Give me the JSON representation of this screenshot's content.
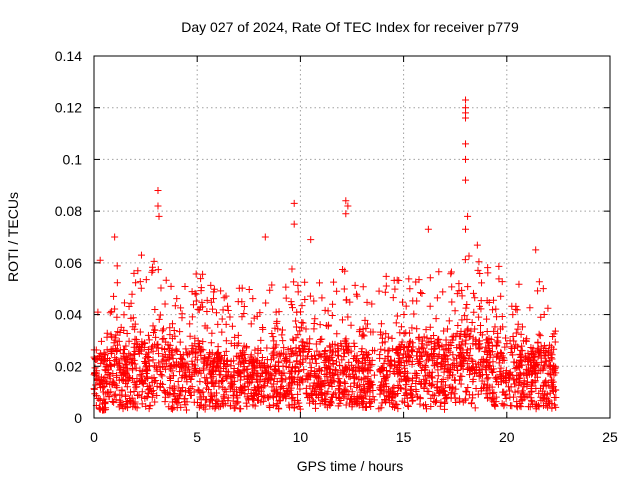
{
  "chart_data": {
    "type": "scatter",
    "title": "Day 027 of 2024, Rate Of TEC Index for receiver p779",
    "xlabel": "GPS time / hours",
    "ylabel": "ROTI / TECUs",
    "xlim": [
      0,
      25
    ],
    "ylim": [
      0,
      0.14
    ],
    "x_ticks": [
      0,
      5,
      10,
      15,
      20,
      25
    ],
    "x_tick_labels": [
      "0",
      "5",
      "10",
      "15",
      "20",
      "25"
    ],
    "y_ticks": [
      0,
      0.02,
      0.04,
      0.06,
      0.08,
      0.1,
      0.12,
      0.14
    ],
    "y_tick_labels": [
      "0",
      "0.02",
      "0.04",
      "0.06",
      "0.08",
      "0.1",
      "0.12",
      "0.14"
    ],
    "grid": true,
    "marker": "plus",
    "marker_color": "#ff0000",
    "data_extent_hours": [
      0,
      22.4
    ],
    "data_gap_hours": [
      13.6,
      13.8
    ],
    "notable_points": [
      {
        "x": 3.1,
        "y": 0.088
      },
      {
        "x": 3.1,
        "y": 0.082
      },
      {
        "x": 3.15,
        "y": 0.078
      },
      {
        "x": 9.7,
        "y": 0.083
      },
      {
        "x": 9.7,
        "y": 0.075
      },
      {
        "x": 12.2,
        "y": 0.084
      },
      {
        "x": 12.3,
        "y": 0.082
      },
      {
        "x": 12.2,
        "y": 0.079
      },
      {
        "x": 18.0,
        "y": 0.123
      },
      {
        "x": 18.0,
        "y": 0.12
      },
      {
        "x": 18.0,
        "y": 0.118
      },
      {
        "x": 18.0,
        "y": 0.116
      },
      {
        "x": 18.0,
        "y": 0.106
      },
      {
        "x": 18.0,
        "y": 0.1
      },
      {
        "x": 18.0,
        "y": 0.092
      },
      {
        "x": 18.1,
        "y": 0.078
      },
      {
        "x": 18.0,
        "y": 0.073
      },
      {
        "x": 1.0,
        "y": 0.07
      },
      {
        "x": 8.3,
        "y": 0.07
      },
      {
        "x": 10.5,
        "y": 0.069
      },
      {
        "x": 16.2,
        "y": 0.073
      },
      {
        "x": 21.4,
        "y": 0.065
      },
      {
        "x": 0.3,
        "y": 0.061
      },
      {
        "x": 2.3,
        "y": 0.063
      }
    ],
    "envelope": {
      "x": [
        0,
        0.5,
        1,
        1.5,
        2,
        2.5,
        3,
        3.5,
        4,
        4.5,
        5,
        5.5,
        6,
        6.5,
        7,
        7.5,
        8,
        8.5,
        9,
        9.5,
        10,
        10.5,
        11,
        11.5,
        12,
        12.5,
        13,
        13.5,
        14,
        14.5,
        15,
        15.5,
        16,
        16.5,
        17,
        17.5,
        18,
        18.5,
        19,
        19.5,
        20,
        20.5,
        21,
        21.5,
        22,
        22.4
      ],
      "upper": [
        0.035,
        0.055,
        0.065,
        0.045,
        0.058,
        0.06,
        0.062,
        0.058,
        0.05,
        0.052,
        0.058,
        0.055,
        0.056,
        0.05,
        0.052,
        0.05,
        0.045,
        0.052,
        0.05,
        0.058,
        0.062,
        0.056,
        0.052,
        0.055,
        0.06,
        0.05,
        0.055,
        0.05,
        0.058,
        0.055,
        0.058,
        0.06,
        0.064,
        0.058,
        0.055,
        0.058,
        0.065,
        0.068,
        0.062,
        0.06,
        0.058,
        0.055,
        0.052,
        0.058,
        0.045,
        0.035
      ],
      "lower": [
        0.003,
        0.003,
        0.004,
        0.003,
        0.004,
        0.003,
        0.004,
        0.004,
        0.003,
        0.003,
        0.004,
        0.003,
        0.004,
        0.004,
        0.003,
        0.003,
        0.004,
        0.004,
        0.003,
        0.004,
        0.003,
        0.004,
        0.003,
        0.004,
        0.004,
        0.003,
        0.004,
        0.003,
        0.003,
        0.003,
        0.004,
        0.004,
        0.003,
        0.004,
        0.003,
        0.004,
        0.004,
        0.003,
        0.004,
        0.004,
        0.003,
        0.004,
        0.004,
        0.003,
        0.004,
        0.003
      ],
      "dense_top": [
        0.022,
        0.026,
        0.03,
        0.024,
        0.028,
        0.03,
        0.032,
        0.03,
        0.026,
        0.025,
        0.028,
        0.025,
        0.026,
        0.024,
        0.025,
        0.024,
        0.022,
        0.024,
        0.025,
        0.028,
        0.03,
        0.028,
        0.026,
        0.028,
        0.03,
        0.026,
        0.026,
        0.024,
        0.026,
        0.026,
        0.028,
        0.03,
        0.032,
        0.03,
        0.028,
        0.03,
        0.034,
        0.036,
        0.032,
        0.03,
        0.03,
        0.028,
        0.026,
        0.028,
        0.026,
        0.024
      ]
    }
  }
}
